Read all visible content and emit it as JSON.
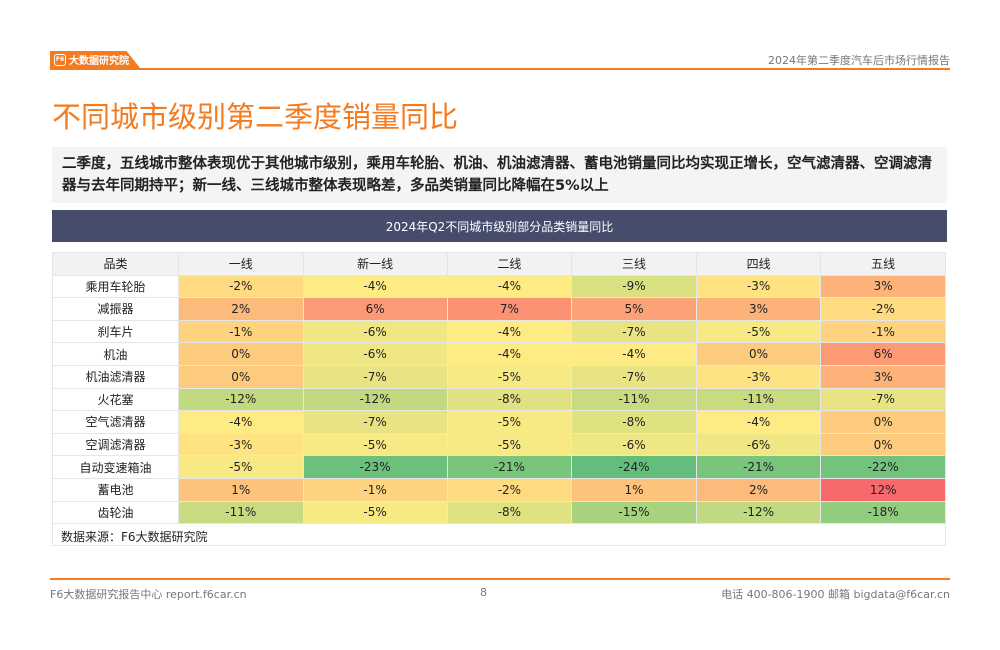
{
  "header": {
    "logo_text": "大数据研究院",
    "report_name": "2024年第二季度汽车后市场行情报告"
  },
  "title": "不同城市级别第二季度销量同比",
  "description": "二季度，五线城市整体表现优于其他城市级别，乘用车轮胎、机油、机油滤清器、蓄电池销量同比均实现正增长，空气滤清器、空调滤清器与去年同期持平；新一线、三线城市整体表现略差，多品类销量同比降幅在5%以上",
  "table_title": "2024年Q2不同城市级别部分品类销量同比",
  "chart_data": {
    "type": "heatmap",
    "title": "2024年Q2不同城市级别部分品类销量同比",
    "row_header": "品类",
    "columns": [
      "一线",
      "新一线",
      "二线",
      "三线",
      "四线",
      "五线"
    ],
    "rows": [
      "乘用车轮胎",
      "减振器",
      "刹车片",
      "机油",
      "机油滤清器",
      "火花塞",
      "空气滤清器",
      "空调滤清器",
      "自动变速箱油",
      "蓄电池",
      "齿轮油"
    ],
    "values": [
      [
        -2,
        -4,
        -4,
        -9,
        -3,
        3
      ],
      [
        2,
        6,
        7,
        5,
        3,
        -2
      ],
      [
        -1,
        -6,
        -4,
        -7,
        -5,
        -1
      ],
      [
        0,
        -6,
        -4,
        -4,
        0,
        6
      ],
      [
        0,
        -7,
        -5,
        -7,
        -3,
        3
      ],
      [
        -12,
        -12,
        -8,
        -11,
        -11,
        -7
      ],
      [
        -4,
        -7,
        -5,
        -8,
        -4,
        0
      ],
      [
        -3,
        -5,
        -5,
        -6,
        -6,
        0
      ],
      [
        -5,
        -23,
        -21,
        -24,
        -21,
        -22
      ],
      [
        1,
        -1,
        -2,
        1,
        2,
        12
      ],
      [
        -11,
        -5,
        -8,
        -15,
        -12,
        -18
      ]
    ],
    "unit": "%",
    "color_scale": {
      "low": "#63be7b",
      "mid": "#ffeb84",
      "high": "#f8696b"
    }
  },
  "source": "数据来源：F6大数据研究院",
  "footer": {
    "left": "F6大数据研究报告中心 report.f6car.cn",
    "page": "8",
    "right": "电话 400-806-1900  邮箱 bigdata@f6car.cn"
  }
}
